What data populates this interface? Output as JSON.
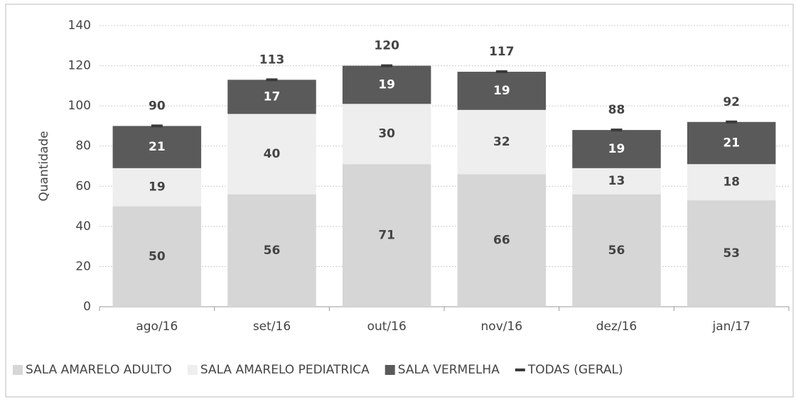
{
  "chart_data": {
    "type": "bar",
    "stacked": true,
    "y_label": "Quantidade",
    "categories": [
      "ago/16",
      "set/16",
      "out/16",
      "nov/16",
      "dez/16",
      "jan/17"
    ],
    "series": [
      {
        "name": "SALA AMARELO ADULTO",
        "color": "#d6d6d6",
        "values": [
          50,
          56,
          71,
          66,
          56,
          53
        ]
      },
      {
        "name": "SALA AMARELO PEDIATRICA",
        "color": "#eeeeee",
        "values": [
          19,
          40,
          30,
          32,
          13,
          18
        ]
      },
      {
        "name": "SALA VERMELHA",
        "color": "#5a5a5a",
        "values": [
          21,
          17,
          19,
          19,
          19,
          21
        ]
      },
      {
        "name": "TODAS (GERAL)",
        "color": "#3a3a3a",
        "type": "line",
        "marker": "dash",
        "values": [
          90,
          113,
          120,
          117,
          88,
          92
        ]
      }
    ],
    "ylim": [
      0,
      140
    ],
    "yticks": [
      0,
      20,
      40,
      60,
      80,
      100,
      120,
      140
    ],
    "grid": true,
    "legend": "bottom"
  }
}
